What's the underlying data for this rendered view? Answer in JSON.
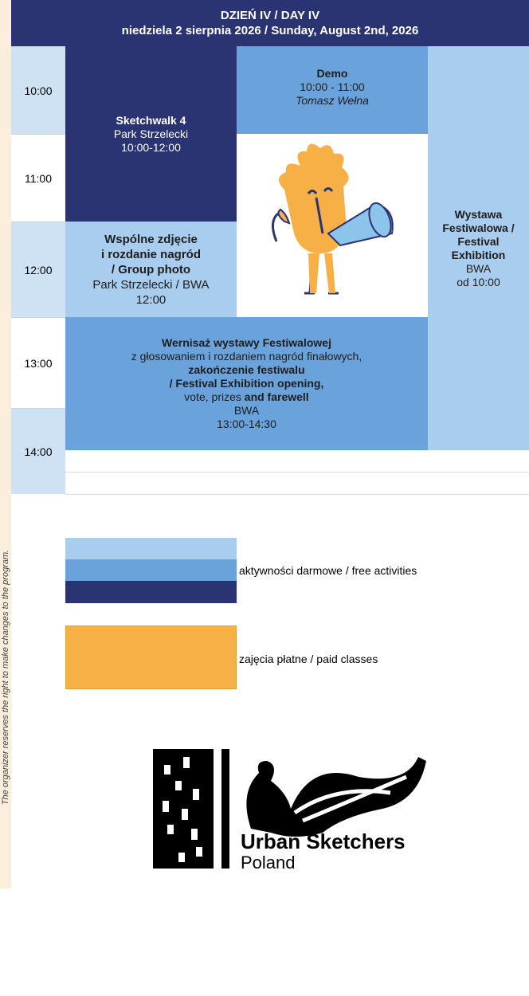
{
  "header": {
    "title": "DZIEŃ IV / DAY IV",
    "date": "niedziela 2 sierpnia 2026 / Sunday, August 2nd, 2026"
  },
  "side_note": "The organizer reserves the right to make changes to the program.",
  "times": [
    "10:00",
    "11:00",
    "12:00",
    "13:00",
    "14:00"
  ],
  "events": {
    "sketchwalk": [
      "Sketchwalk 4",
      "Park Strzelecki",
      "10:00-12:00"
    ],
    "demo": [
      "Demo",
      "10:00 - 11:00",
      "Tomasz Wełna"
    ],
    "exhibition": [
      "Wystawa Festiwalowa / Festival Exhibition",
      "BWA",
      "od 10:00"
    ],
    "group_photo": [
      "Wspólne zdjęcie",
      "i rozdanie nagród",
      "/ Group photo",
      "Park Strzelecki / BWA",
      "12:00"
    ],
    "opening": [
      "Wernisaż wystawy Festiwalowej",
      "z głosowaniem i rozdaniem nagród finałowych,",
      "zakończenie festiwalu",
      "/ Festival Exhibition opening,",
      "vote, prizes",
      "and farewell",
      "BWA",
      "13:00-14:30"
    ]
  },
  "legend": {
    "free": "aktywności darmowe / free activities",
    "paid": "zajęcia płatne / paid classes"
  },
  "logo": {
    "name": "Urban Sketchers",
    "country": "Poland"
  }
}
